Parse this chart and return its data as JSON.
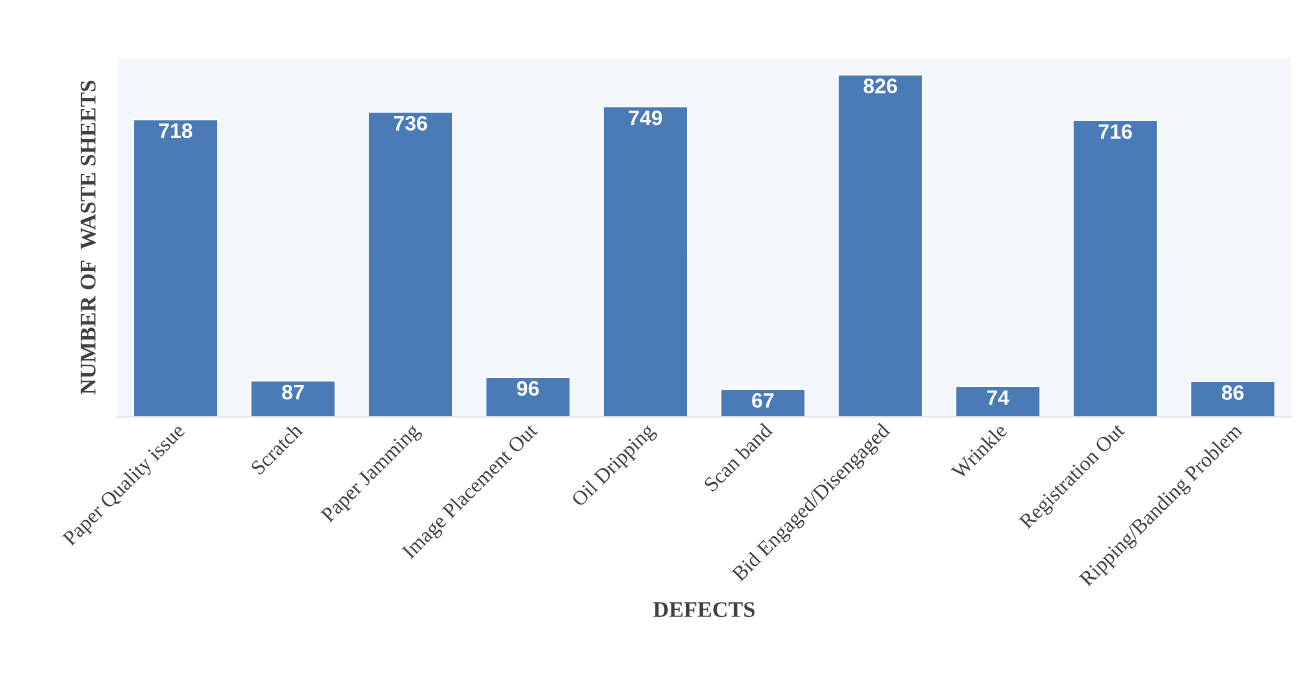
{
  "chart_data": {
    "type": "bar",
    "xlabel": "DEFECTS",
    "ylabel": "NUMBER OF  WASTE SHEETS",
    "categories": [
      "Paper Quality issue",
      "Scratch",
      "Paper Jamming",
      "Image Placement Out",
      "Oil Dripping",
      "Scan band",
      "Bid Engaged/Disengaged",
      "Wrinkle",
      "Registration Out",
      "Ripping/Banding Problem"
    ],
    "values": [
      718,
      87,
      736,
      96,
      749,
      67,
      826,
      74,
      716,
      86
    ],
    "color": "#4a7bb7",
    "data_labels": true,
    "grid": false,
    "legend": false
  }
}
